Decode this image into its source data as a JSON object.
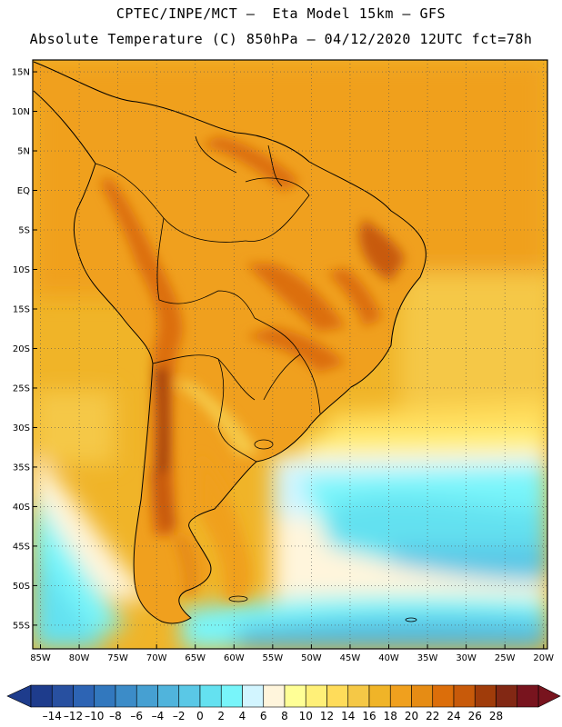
{
  "header": {
    "line1": "CPTEC/INPE/MCT –  Eta Model 15km – GFS",
    "line2": "Absolute Temperature (C) 850hPa – 04/12/2020 12UTC fct=78h"
  },
  "map": {
    "lat_labels": [
      "15N",
      "10N",
      "5N",
      "EQ",
      "5S",
      "10S",
      "15S",
      "20S",
      "25S",
      "30S",
      "35S",
      "40S",
      "45S",
      "50S",
      "55S"
    ],
    "lat_values": [
      15,
      10,
      5,
      0,
      -5,
      -10,
      -15,
      -20,
      -25,
      -30,
      -35,
      -40,
      -45,
      -50,
      -55
    ],
    "lon_labels": [
      "85W",
      "80W",
      "75W",
      "70W",
      "65W",
      "60W",
      "55W",
      "50W",
      "45W",
      "40W",
      "35W",
      "30W",
      "25W",
      "20W"
    ],
    "lon_values": [
      -85,
      -80,
      -75,
      -70,
      -65,
      -60,
      -55,
      -50,
      -45,
      -40,
      -35,
      -30,
      -25,
      -20
    ],
    "lat_range": [
      -58,
      16.5
    ],
    "lon_range": [
      -86,
      -19.5
    ],
    "gridlines": "dotted"
  },
  "colorbar": {
    "labels": [
      "–14",
      "–12",
      "–10",
      "–8",
      "–6",
      "–4",
      "–2",
      "0",
      "2",
      "4",
      "6",
      "8",
      "10",
      "12",
      "14",
      "16",
      "18",
      "20",
      "22",
      "24",
      "26",
      "28"
    ],
    "colors": [
      "#1e3c8c",
      "#2850a0",
      "#2d64b4",
      "#3278be",
      "#3c8cc8",
      "#46a0d2",
      "#50b4dc",
      "#5ac8e6",
      "#64e1f0",
      "#78f5fa",
      "#d2f5ff",
      "#fff5dc",
      "#ffff96",
      "#fff078",
      "#ffdc5a",
      "#f5c846",
      "#f0b428",
      "#f0a01e",
      "#e68c14",
      "#dc6e0a",
      "#c85a0a",
      "#a03c0a",
      "#822814",
      "#78141e"
    ]
  }
}
